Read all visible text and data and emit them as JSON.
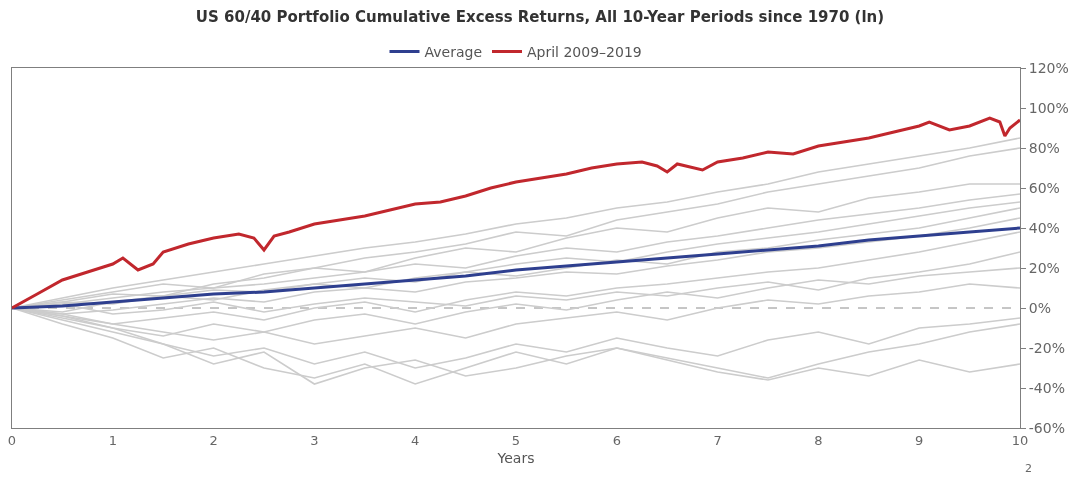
{
  "chart_data": {
    "type": "line",
    "title": "US 60/40 Portfolio Cumulative Excess Returns, All 10-Year Periods since 1970 (ln)",
    "xlabel": "Years",
    "x": [
      0,
      0.5,
      1,
      1.5,
      2,
      2.5,
      3,
      3.5,
      4,
      4.5,
      5,
      5.5,
      6,
      6.5,
      7,
      7.5,
      8,
      8.5,
      9,
      9.5,
      10
    ],
    "xlim": [
      0,
      10
    ],
    "xticks": [
      0,
      1,
      2,
      3,
      4,
      5,
      6,
      7,
      8,
      9,
      10
    ],
    "ylim": [
      -60,
      120
    ],
    "yticks": [
      {
        "value": -60,
        "label": "-60%"
      },
      {
        "value": -40,
        "label": "-40%"
      },
      {
        "value": -20,
        "label": "-20%"
      },
      {
        "value": 0,
        "label": "0%"
      },
      {
        "value": 20,
        "label": "20%"
      },
      {
        "value": 40,
        "label": "40%"
      },
      {
        "value": 60,
        "label": "60%"
      },
      {
        "value": 80,
        "label": "80%"
      },
      {
        "value": 100,
        "label": "100%"
      },
      {
        "value": 120,
        "label": "120%"
      }
    ],
    "grid": false,
    "legend": "top",
    "marker": "none",
    "line_style": "solid",
    "ref_lines": [
      {
        "axis": "y",
        "value": 0,
        "color": "#8c8c8c",
        "line_style": "dashed"
      }
    ],
    "annotations": [
      "2"
    ],
    "series": [
      {
        "color": "#cccccc",
        "values": [
          0,
          5,
          10,
          14,
          18,
          22,
          26,
          30,
          33,
          37,
          42,
          45,
          50,
          53,
          58,
          62,
          68,
          72,
          76,
          80,
          85
        ]
      },
      {
        "color": "#cccccc",
        "values": [
          0,
          4,
          8,
          12,
          10,
          17,
          20,
          25,
          28,
          32,
          38,
          36,
          44,
          48,
          52,
          58,
          62,
          66,
          70,
          76,
          80
        ]
      },
      {
        "color": "#cccccc",
        "values": [
          0,
          3,
          7,
          6,
          12,
          15,
          20,
          18,
          25,
          30,
          28,
          35,
          40,
          38,
          45,
          50,
          48,
          55,
          58,
          62,
          62
        ]
      },
      {
        "color": "#cccccc",
        "values": [
          0,
          2,
          5,
          8,
          10,
          12,
          15,
          18,
          22,
          20,
          26,
          30,
          28,
          33,
          36,
          40,
          44,
          47,
          50,
          54,
          57
        ]
      },
      {
        "color": "#cccccc",
        "values": [
          0,
          -2,
          3,
          6,
          4,
          9,
          12,
          15,
          13,
          18,
          22,
          25,
          23,
          28,
          32,
          35,
          38,
          42,
          46,
          50,
          53
        ]
      },
      {
        "color": "#cccccc",
        "values": [
          0,
          3,
          2,
          6,
          9,
          8,
          12,
          10,
          15,
          18,
          16,
          20,
          24,
          22,
          28,
          30,
          34,
          37,
          40,
          45,
          50
        ]
      },
      {
        "color": "#cccccc",
        "values": [
          0,
          -3,
          -1,
          2,
          5,
          3,
          8,
          10,
          8,
          13,
          15,
          18,
          17,
          21,
          24,
          28,
          30,
          33,
          36,
          40,
          45
        ]
      },
      {
        "color": "#cccccc",
        "values": [
          0,
          -4,
          -8,
          -5,
          -2,
          -6,
          0,
          3,
          -2,
          4,
          8,
          6,
          10,
          12,
          15,
          18,
          20,
          24,
          28,
          33,
          38
        ]
      },
      {
        "color": "#cccccc",
        "values": [
          0,
          2,
          -3,
          -1,
          3,
          -2,
          2,
          5,
          3,
          1,
          6,
          4,
          8,
          6,
          10,
          13,
          9,
          15,
          18,
          22,
          28
        ]
      },
      {
        "color": "#cccccc",
        "values": [
          0,
          -5,
          -10,
          -14,
          -8,
          -12,
          -6,
          -3,
          -8,
          -2,
          2,
          -1,
          4,
          8,
          5,
          10,
          14,
          12,
          16,
          18,
          20
        ]
      },
      {
        "color": "#cccccc",
        "values": [
          0,
          -3,
          -8,
          -12,
          -16,
          -12,
          -18,
          -14,
          -10,
          -15,
          -8,
          -5,
          -2,
          -6,
          0,
          4,
          2,
          6,
          8,
          12,
          10
        ]
      },
      {
        "color": "#cccccc",
        "values": [
          0,
          -6,
          -12,
          -18,
          -24,
          -20,
          -28,
          -22,
          -30,
          -25,
          -18,
          -22,
          -15,
          -20,
          -24,
          -16,
          -12,
          -18,
          -10,
          -8,
          -5
        ]
      },
      {
        "color": "#cccccc",
        "values": [
          0,
          -8,
          -15,
          -25,
          -20,
          -30,
          -35,
          -28,
          -38,
          -30,
          -22,
          -28,
          -20,
          -25,
          -30,
          -35,
          -28,
          -22,
          -18,
          -12,
          -8
        ]
      },
      {
        "color": "#cccccc",
        "values": [
          0,
          -4,
          -10,
          -18,
          -28,
          -22,
          -38,
          -30,
          -26,
          -34,
          -30,
          -24,
          -20,
          -26,
          -32,
          -36,
          -30,
          -34,
          -26,
          -32,
          -28
        ]
      },
      {
        "name": "Average",
        "color": "#2e3f8f",
        "values": [
          0,
          1,
          3,
          5,
          7,
          8,
          10,
          12,
          14,
          16,
          19,
          21,
          23,
          25,
          27,
          29,
          31,
          34,
          36,
          38,
          40
        ]
      },
      {
        "name": "April 2009–2019",
        "color": "#c1272d",
        "x": [
          0,
          0.25,
          0.5,
          0.75,
          1,
          1.1,
          1.25,
          1.4,
          1.5,
          1.75,
          2,
          2.25,
          2.4,
          2.5,
          2.6,
          2.75,
          3,
          3.25,
          3.5,
          3.75,
          4,
          4.25,
          4.5,
          4.75,
          5,
          5.25,
          5.5,
          5.75,
          6,
          6.25,
          6.4,
          6.5,
          6.6,
          6.85,
          7,
          7.25,
          7.5,
          7.75,
          8,
          8.25,
          8.5,
          8.75,
          9,
          9.1,
          9.3,
          9.5,
          9.7,
          9.8,
          9.85,
          9.9,
          10
        ],
        "values": [
          0,
          7,
          14,
          18,
          22,
          25,
          19,
          22,
          28,
          32,
          35,
          37,
          35,
          29,
          36,
          38,
          42,
          44,
          46,
          49,
          52,
          53,
          56,
          60,
          63,
          65,
          67,
          70,
          72,
          73,
          71,
          68,
          72,
          69,
          73,
          75,
          78,
          77,
          81,
          83,
          85,
          88,
          91,
          93,
          89,
          91,
          95,
          93,
          86,
          90,
          94
        ]
      }
    ]
  }
}
